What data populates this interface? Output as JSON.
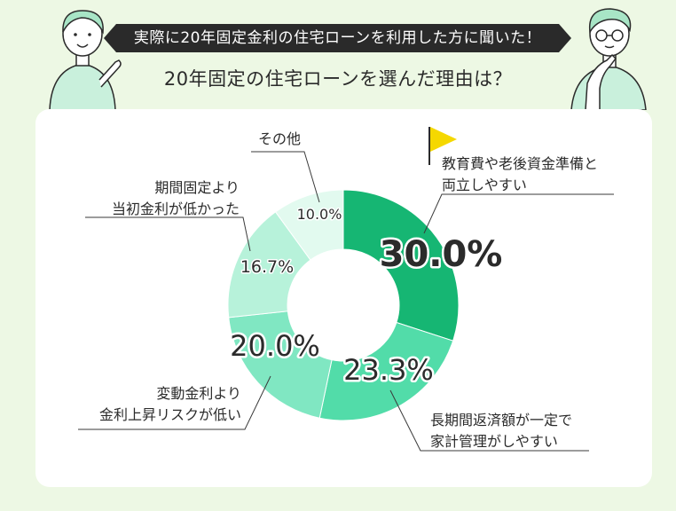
{
  "header": {
    "banner": "実際に20年固定金利の住宅ローンを利用した方に聞いた！",
    "subtitle": "20年固定の住宅ローンを選んだ理由は？"
  },
  "colors": {
    "background": "#edf8e4",
    "banner_bg": "#2a2a2a",
    "flag": "#f5d800",
    "skin": "#ffffff",
    "outline": "#2b2b2b",
    "person_shirt": "#c9f0dc",
    "hair": "#a8e5c6"
  },
  "chart_data": {
    "type": "pie",
    "donut": true,
    "title": "20年固定の住宅ローンを選んだ理由は？",
    "start": "12 o'clock",
    "direction": "clockwise",
    "slices": [
      {
        "lines": [
          "教育費や老後資金準備と",
          "両立しやすい"
        ],
        "value": 30.0,
        "pct_label": "30.0%",
        "color": "#16b673",
        "highlight": true
      },
      {
        "lines": [
          "長期間返済額が一定で",
          "家計管理がしやすい"
        ],
        "value": 23.3,
        "pct_label": "23.3%",
        "color": "#52dca9"
      },
      {
        "lines": [
          "変動金利より",
          "金利上昇リスクが低い"
        ],
        "value": 20.0,
        "pct_label": "20.0%",
        "color": "#80e7c2"
      },
      {
        "lines": [
          "期間固定より",
          "当初金利が低かった"
        ],
        "value": 16.7,
        "pct_label": "16.7%",
        "color": "#b7f2da"
      },
      {
        "lines": [
          "その他"
        ],
        "value": 10.0,
        "pct_label": "10.0%",
        "color": "#e2faef"
      }
    ]
  }
}
